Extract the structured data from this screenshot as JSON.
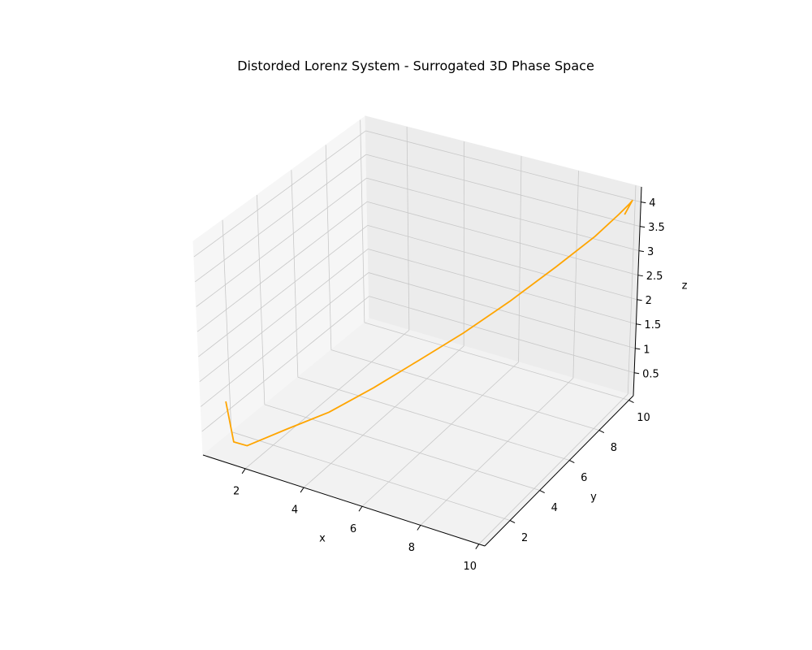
{
  "chart_data": {
    "type": "line3d",
    "title": "Distorded Lorenz System - Surrogated 3D Phase Space",
    "xlabel": "x",
    "ylabel": "y",
    "zlabel": "z",
    "x": [
      1.0,
      1.1,
      1.5,
      2.5,
      3.5,
      4.5,
      5.5,
      6.5,
      7.5,
      8.5,
      9.3,
      9.8,
      10.0,
      10.05,
      9.9
    ],
    "y": [
      1.0,
      1.2,
      1.3,
      2.0,
      2.8,
      3.8,
      4.8,
      5.8,
      6.9,
      8.0,
      9.0,
      9.6,
      9.9,
      10.0,
      9.8
    ],
    "z": [
      1.0,
      0.15,
      0.12,
      0.45,
      0.75,
      1.15,
      1.6,
      2.05,
      2.55,
      3.1,
      3.55,
      3.9,
      4.05,
      4.1,
      3.85
    ],
    "color": "#ffa500",
    "xlim": [
      0.55,
      10.2
    ],
    "ylim": [
      0.3,
      10.3
    ],
    "zlim": [
      0.03,
      4.31
    ],
    "xticks": [
      2,
      4,
      6,
      8,
      10
    ],
    "yticks": [
      2,
      4,
      6,
      8,
      10
    ],
    "zticks": [
      0.5,
      1.0,
      1.5,
      2.0,
      2.5,
      3.0,
      3.5,
      4.0
    ],
    "grid": true
  }
}
